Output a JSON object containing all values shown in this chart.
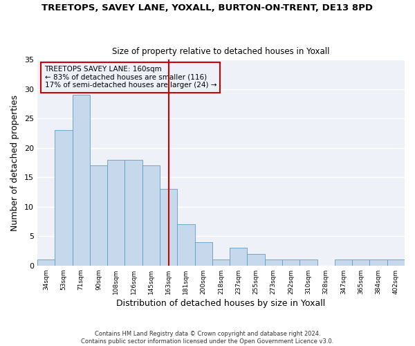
{
  "title1": "TREETOPS, SAVEY LANE, YOXALL, BURTON-ON-TRENT, DE13 8PD",
  "title2": "Size of property relative to detached houses in Yoxall",
  "xlabel": "Distribution of detached houses by size in Yoxall",
  "ylabel": "Number of detached properties",
  "footer": "Contains HM Land Registry data © Crown copyright and database right 2024.\nContains public sector information licensed under the Open Government Licence v3.0.",
  "categories": [
    "34sqm",
    "53sqm",
    "71sqm",
    "90sqm",
    "108sqm",
    "126sqm",
    "145sqm",
    "163sqm",
    "181sqm",
    "200sqm",
    "218sqm",
    "237sqm",
    "255sqm",
    "273sqm",
    "292sqm",
    "310sqm",
    "328sqm",
    "347sqm",
    "365sqm",
    "384sqm",
    "402sqm"
  ],
  "values": [
    1,
    23,
    29,
    17,
    18,
    18,
    17,
    13,
    7,
    4,
    1,
    3,
    2,
    1,
    1,
    1,
    0,
    1,
    1,
    1,
    1
  ],
  "bar_color": "#c6d9ec",
  "bar_edge_color": "#5f9ec0",
  "highlight_index": 7,
  "highlight_color": "#cc0000",
  "annotation_title": "TREETOPS SAVEY LANE: 160sqm",
  "annotation_line1": "← 83% of detached houses are smaller (116)",
  "annotation_line2": "17% of semi-detached houses are larger (24) →",
  "ylim": [
    0,
    35
  ],
  "yticks": [
    0,
    5,
    10,
    15,
    20,
    25,
    30,
    35
  ],
  "background_color": "#ffffff",
  "plot_bg_color": "#eef2f8",
  "grid_color": "#ffffff"
}
